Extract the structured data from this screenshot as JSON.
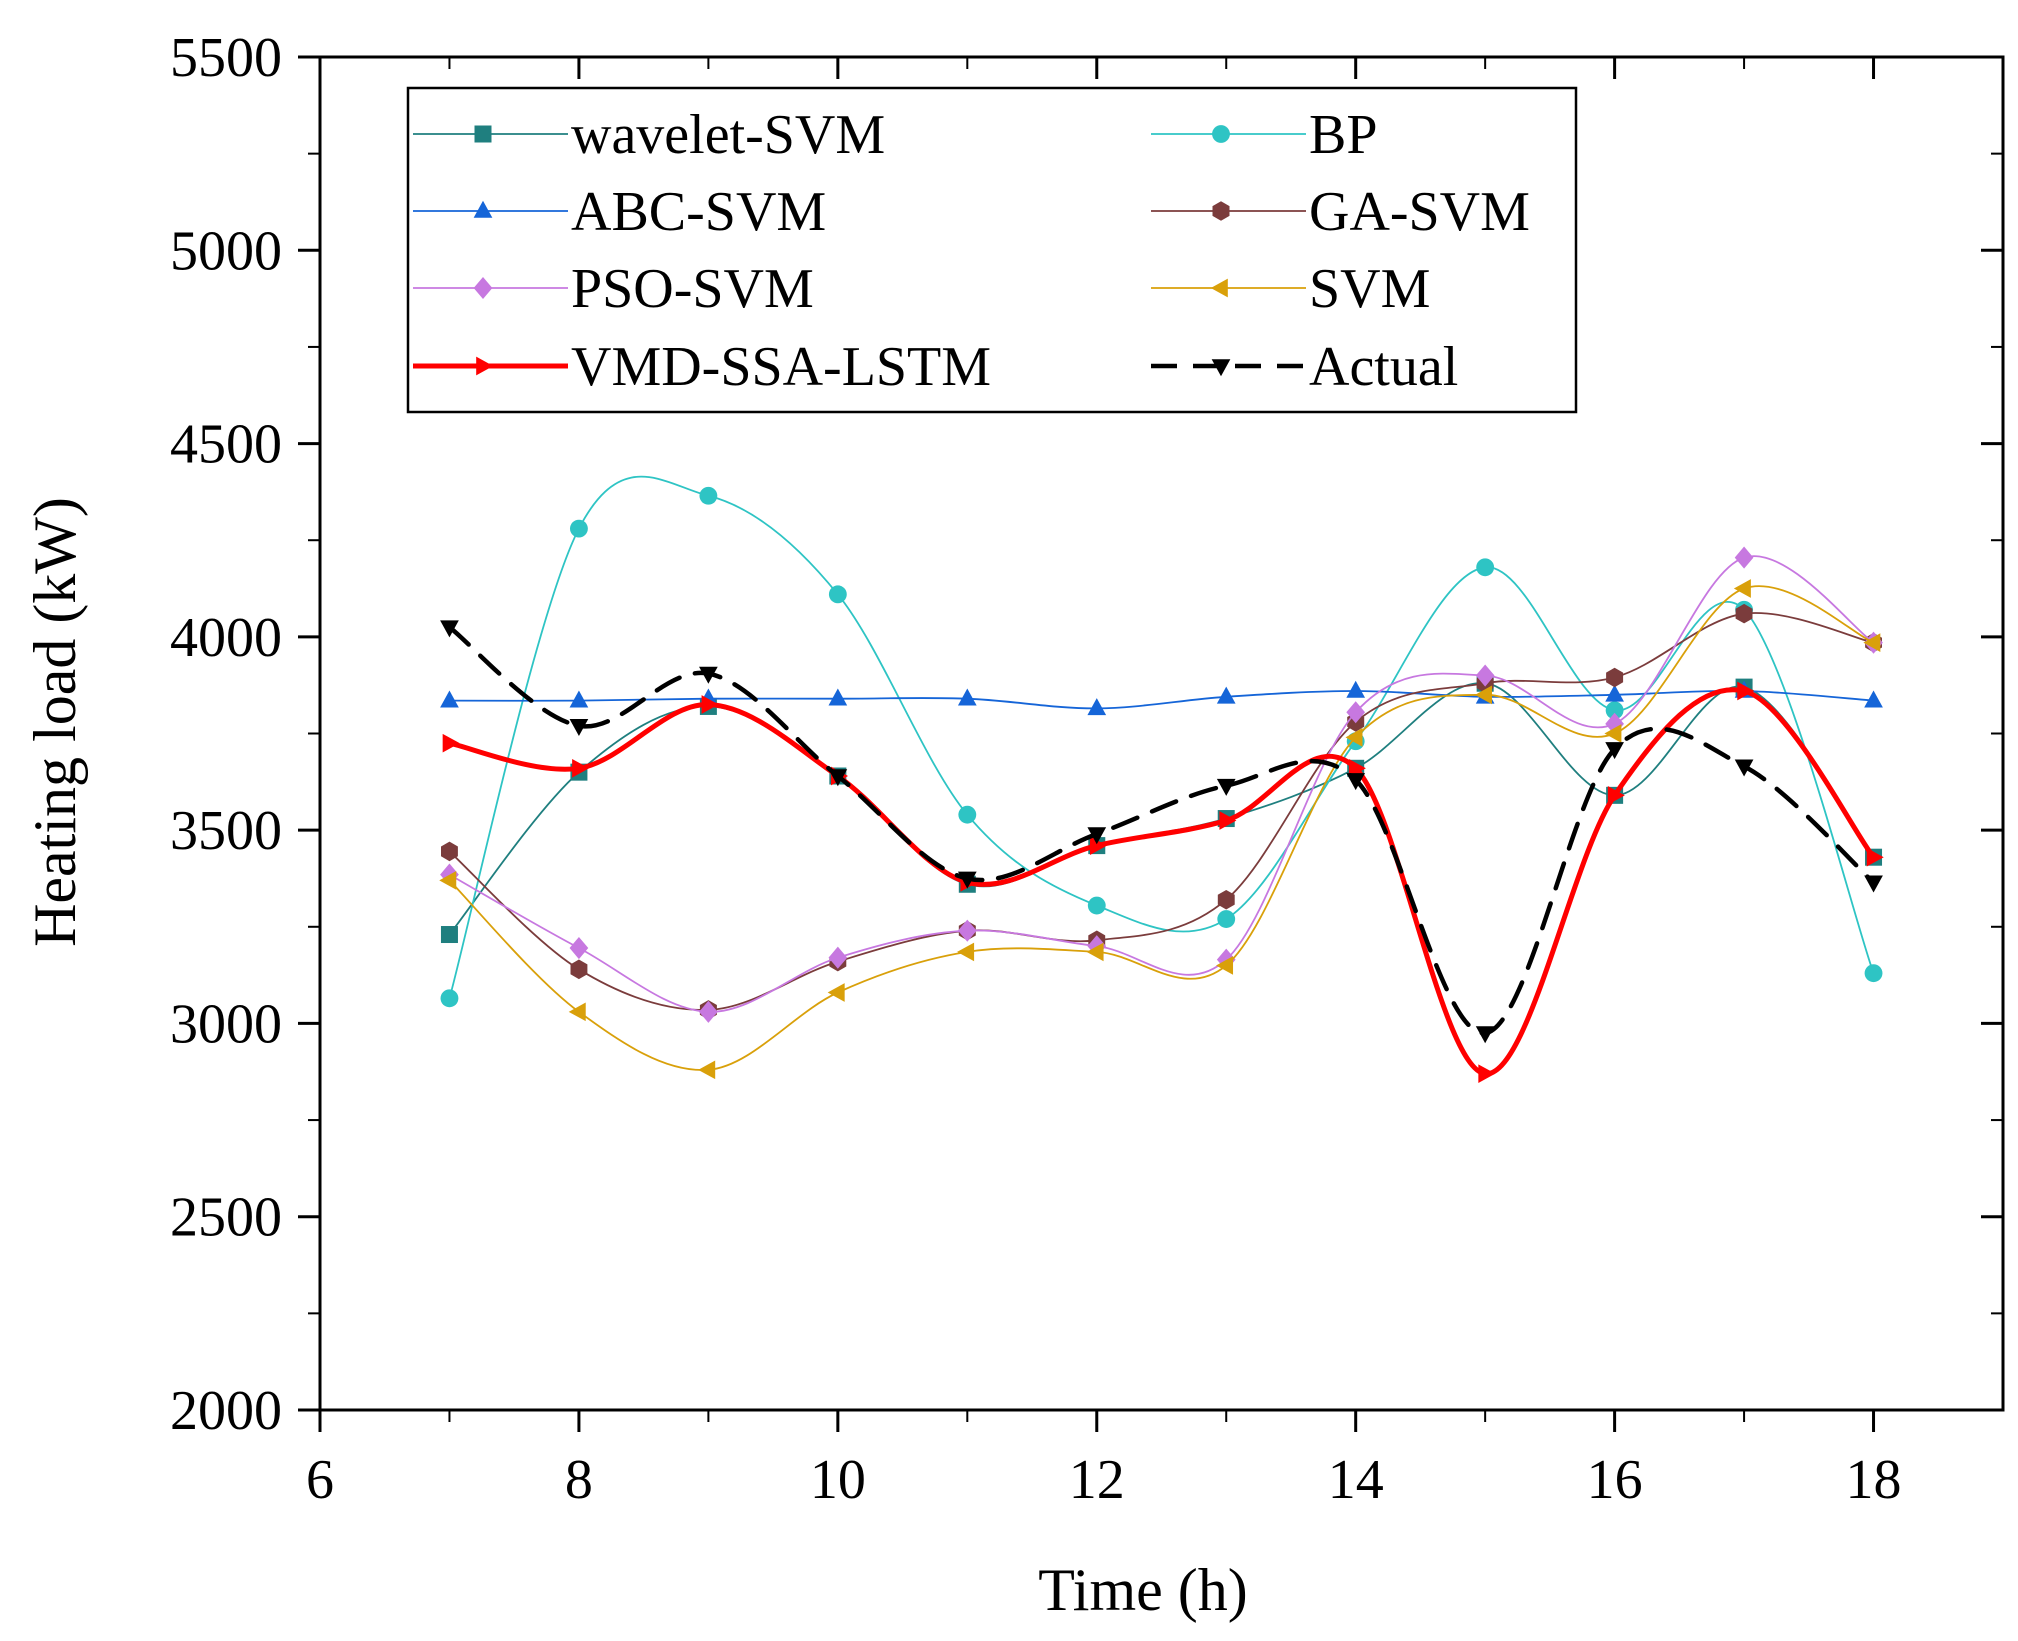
{
  "chart_data": {
    "type": "line",
    "title": "",
    "xlabel": "Time (h)",
    "ylabel": "Heating load (kW)",
    "xlim": [
      6,
      19
    ],
    "ylim": [
      2000,
      5500
    ],
    "xticks": [
      6,
      8,
      10,
      12,
      14,
      16,
      18
    ],
    "yticks": [
      2000,
      2500,
      3000,
      3500,
      4000,
      4500,
      5000,
      5500
    ],
    "grid": false,
    "legend_position": "top",
    "x": [
      7,
      8,
      9,
      10,
      11,
      12,
      13,
      14,
      15,
      16,
      17,
      18
    ],
    "series": [
      {
        "name": "wavelet-SVM",
        "color": "#1f7f7f",
        "marker": "square",
        "line": "solid",
        "values": [
          3230,
          3650,
          3820,
          3640,
          3360,
          3460,
          3530,
          3660,
          3880,
          3590,
          3870,
          3430
        ]
      },
      {
        "name": "BP",
        "color": "#2ec4c4",
        "marker": "circle",
        "line": "solid",
        "values": [
          3065,
          4280,
          4365,
          4110,
          3540,
          3305,
          3270,
          3730,
          4180,
          3810,
          4070,
          3130
        ]
      },
      {
        "name": "ABC-SVM",
        "color": "#1565d8",
        "marker": "triangle-up",
        "line": "solid",
        "values": [
          3835,
          3835,
          3840,
          3840,
          3840,
          3815,
          3845,
          3860,
          3845,
          3850,
          3860,
          3835
        ]
      },
      {
        "name": "GA-SVM",
        "color": "#7b3c3c",
        "marker": "hexagon",
        "line": "solid",
        "values": [
          3445,
          3140,
          3035,
          3160,
          3240,
          3215,
          3320,
          3780,
          3880,
          3895,
          4060,
          3985
        ]
      },
      {
        "name": "PSO-SVM",
        "color": "#c778e0",
        "marker": "diamond",
        "line": "solid",
        "values": [
          3385,
          3195,
          3030,
          3170,
          3240,
          3200,
          3165,
          3805,
          3900,
          3775,
          4205,
          3985
        ]
      },
      {
        "name": "SVM",
        "color": "#d9a00a",
        "marker": "triangle-left",
        "line": "solid",
        "values": [
          3370,
          3030,
          2880,
          3080,
          3185,
          3185,
          3150,
          3740,
          3850,
          3750,
          4125,
          3985
        ]
      },
      {
        "name": "VMD-SSA-LSTM",
        "color": "#ff0000",
        "marker": "triangle-right",
        "line": "solid-thick",
        "values": [
          3725,
          3660,
          3825,
          3640,
          3365,
          3460,
          3525,
          3660,
          2870,
          3590,
          3860,
          3430
        ]
      },
      {
        "name": "Actual",
        "color": "#000000",
        "marker": "triangle-down",
        "line": "dashed",
        "values": [
          4025,
          3770,
          3905,
          3640,
          3375,
          3490,
          3615,
          3630,
          2975,
          3710,
          3665,
          3365
        ]
      }
    ]
  }
}
